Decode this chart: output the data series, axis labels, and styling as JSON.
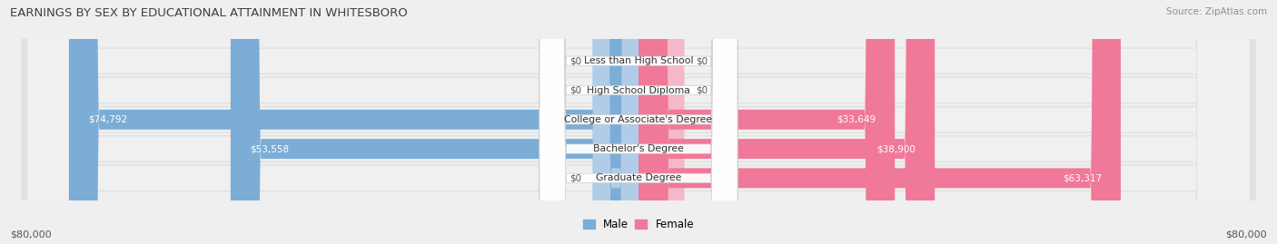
{
  "title": "EARNINGS BY SEX BY EDUCATIONAL ATTAINMENT IN WHITESBORO",
  "source": "Source: ZipAtlas.com",
  "categories": [
    "Less than High School",
    "High School Diploma",
    "College or Associate's Degree",
    "Bachelor's Degree",
    "Graduate Degree"
  ],
  "male_values": [
    0,
    0,
    74792,
    53558,
    0
  ],
  "female_values": [
    0,
    0,
    33649,
    38900,
    63317
  ],
  "male_color": "#7badd6",
  "female_color": "#f07898",
  "male_stub_color": "#b0cce8",
  "female_stub_color": "#f5b8c8",
  "max_value": 80000,
  "stub_value": 6000,
  "bar_label_male": "Male",
  "bar_label_female": "Female",
  "axis_label_left": "$80,000",
  "axis_label_right": "$80,000",
  "bg_color": "#efefef",
  "row_outer_color": "#e0e0e0",
  "row_inner_color": "#f0f0f0",
  "title_color": "#404040",
  "source_color": "#909090"
}
